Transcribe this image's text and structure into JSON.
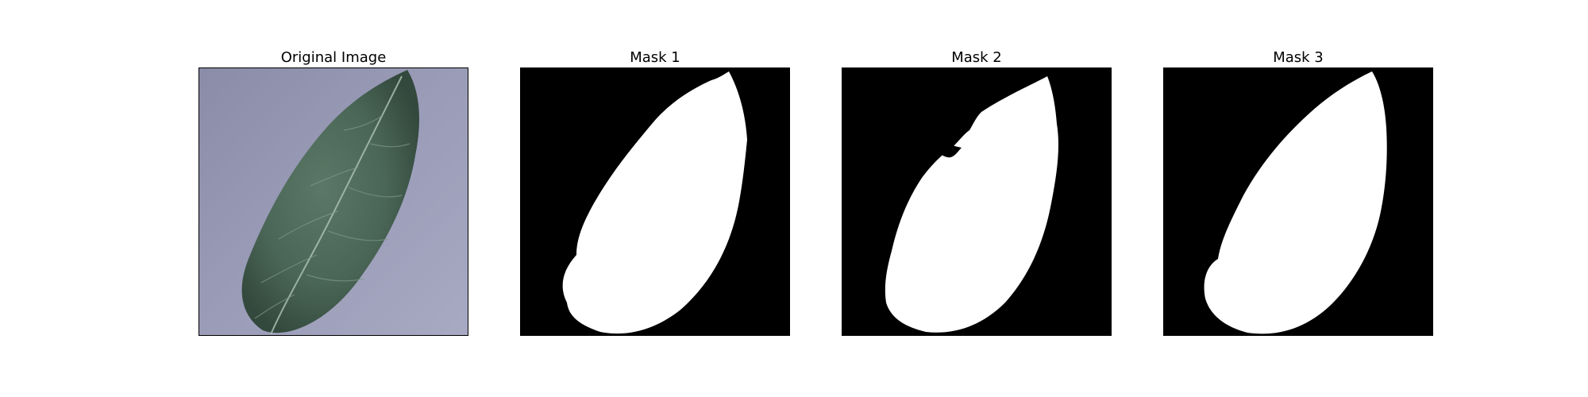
{
  "figure": {
    "panels": [
      {
        "title": "Original Image",
        "kind": "photo",
        "subject": "leaf"
      },
      {
        "title": "Mask 1",
        "kind": "mask"
      },
      {
        "title": "Mask 2",
        "kind": "mask"
      },
      {
        "title": "Mask 3",
        "kind": "mask"
      }
    ]
  },
  "colors": {
    "background_paper": "#9a9cb8",
    "leaf_fill": "#4e6a5a",
    "mask_background": "#000000",
    "mask_foreground": "#ffffff"
  }
}
